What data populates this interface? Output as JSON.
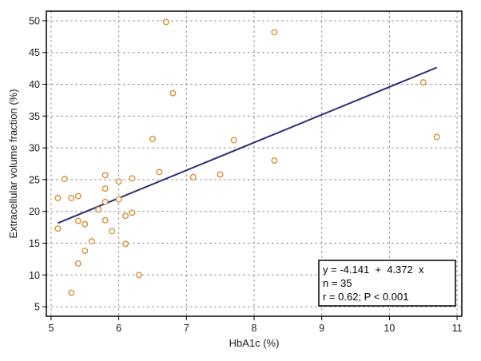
{
  "colors": {
    "background": "#ffffff",
    "frame": "#000000",
    "grid": "#9a9a9a",
    "marker": "#d98a2b",
    "regression_line": "#2b2f7a"
  },
  "chart_data": {
    "type": "scatter",
    "title": "",
    "xlabel": "HbA1c (%)",
    "ylabel": "Extracellular volume fraction (%)",
    "xlim": [
      4.93,
      11.07
    ],
    "ylim": [
      3.5,
      51.5
    ],
    "xticks": [
      5,
      6,
      7,
      8,
      9,
      10,
      11
    ],
    "yticks": [
      5,
      10,
      15,
      20,
      25,
      30,
      35,
      40,
      45,
      50
    ],
    "grid": true,
    "marker": "open-circle",
    "points": [
      {
        "x": 5.1,
        "y": 22.1
      },
      {
        "x": 5.1,
        "y": 17.3
      },
      {
        "x": 5.2,
        "y": 25.1
      },
      {
        "x": 5.3,
        "y": 22.1
      },
      {
        "x": 5.3,
        "y": 7.2
      },
      {
        "x": 5.4,
        "y": 22.4
      },
      {
        "x": 5.4,
        "y": 18.5
      },
      {
        "x": 5.4,
        "y": 11.8
      },
      {
        "x": 5.5,
        "y": 18.0
      },
      {
        "x": 5.5,
        "y": 13.8
      },
      {
        "x": 5.6,
        "y": 15.3
      },
      {
        "x": 5.7,
        "y": 20.3
      },
      {
        "x": 5.8,
        "y": 25.7
      },
      {
        "x": 5.8,
        "y": 23.6
      },
      {
        "x": 5.8,
        "y": 21.5
      },
      {
        "x": 5.8,
        "y": 18.6
      },
      {
        "x": 5.9,
        "y": 16.9
      },
      {
        "x": 6.0,
        "y": 24.7
      },
      {
        "x": 6.0,
        "y": 21.9
      },
      {
        "x": 6.1,
        "y": 19.3
      },
      {
        "x": 6.1,
        "y": 14.9
      },
      {
        "x": 6.2,
        "y": 25.2
      },
      {
        "x": 6.2,
        "y": 19.8
      },
      {
        "x": 6.3,
        "y": 10.0
      },
      {
        "x": 6.5,
        "y": 31.4
      },
      {
        "x": 6.6,
        "y": 26.2
      },
      {
        "x": 6.7,
        "y": 49.8
      },
      {
        "x": 6.8,
        "y": 38.6
      },
      {
        "x": 7.1,
        "y": 25.4
      },
      {
        "x": 7.5,
        "y": 25.8
      },
      {
        "x": 7.7,
        "y": 31.2
      },
      {
        "x": 8.3,
        "y": 48.2
      },
      {
        "x": 8.3,
        "y": 28.0
      },
      {
        "x": 10.5,
        "y": 40.3
      },
      {
        "x": 10.7,
        "y": 31.7
      }
    ],
    "regression": {
      "intercept": -4.141,
      "slope": 4.372,
      "x_range": [
        5.1,
        10.7
      ]
    },
    "annotation": {
      "position": "bottom-right",
      "lines": [
        "y = -4.141  +  4.372  x",
        "n = 35",
        "r = 0.62; P < 0.001"
      ]
    }
  }
}
